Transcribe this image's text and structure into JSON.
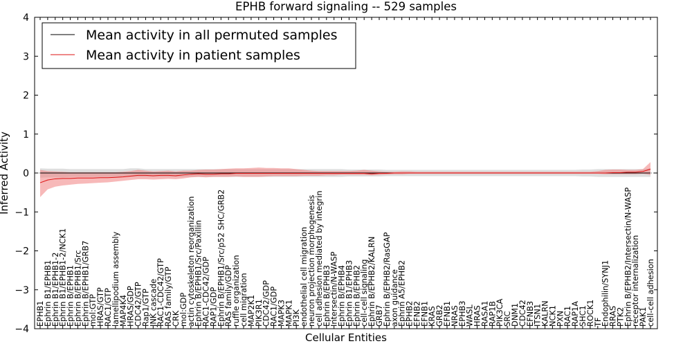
{
  "chart_data": {
    "type": "line",
    "title": "EPHB forward signaling -- 529 samples",
    "xlabel": "Cellular Entities",
    "ylabel": "Inferred Activity",
    "ylim": [
      -4,
      4
    ],
    "yticks": [
      -4,
      -3,
      -2,
      -1,
      0,
      1,
      2,
      3,
      4
    ],
    "legend_position": "top-left",
    "colors": {
      "permuted": "#000000",
      "patient": "#dd1111",
      "permuted_band": "#c8c8c8",
      "patient_band": "#f08080"
    },
    "categories": [
      "EPHB1",
      "Ephrin B1/EPHB1",
      "Ephrin B1/EPHB1-2",
      "Ephrin B1/EPHB1-2/NCK1",
      "Ephrin B/EPHB1",
      "Ephrin B/EPHB1/Src",
      "Ephrin B/EPHB1/GRB7",
      "mol:GTP",
      "HRAS/GTP",
      "RAC1/GTP",
      "lamellipodium assembly",
      "MAP4K4",
      "HRAS/GDP",
      "CDC42/GTP",
      "Rap1/GTP",
      "JNK cascade",
      "RAC1-CDC42/GTP",
      "RAS family/GTP",
      "CRK",
      "mol:GDP",
      "actin cytoskeleton reorganization",
      "Ephrin B/EPHB1/Src/Paxillin",
      "RAC1-CDC42/GDP",
      "RAP1/GDP",
      "Ephrin B/EPHB1/Src/p52 SHC/GRB2",
      "RAS family/GDP",
      "ruffle organization",
      "cell migration",
      "MAP2K1",
      "PIK3R1",
      "CDC42/GDP",
      "RAC1/GDP",
      "MAPK3",
      "MAPK1",
      "PI3K",
      "endothelial cell migration",
      "neuron projection morphogenesis",
      "cell adhesion mediated by integrin",
      "Ephrin B/EPHB3",
      "Intersectin/N-WASP",
      "Ephrin B/EPHB4",
      "Ephrin B1/EPHB3",
      "Ephrin B/EPHB2",
      "cell-cell signaling",
      "Ephrin B/EPHB2/KALRN",
      "GRB7",
      "Ephrin B/EPHB2/RasGAP",
      "axon guidance",
      "Ephrin A5/EPHB2",
      "EPHB2",
      "EFNB2",
      "EFNB1",
      "KRAS",
      "GRB2",
      "EFNB1",
      "NRAS",
      "EPHB3",
      "WASL",
      "HRAS",
      "RASA1",
      "RAP1B",
      "PIK3CA",
      "SRC",
      "DNM1",
      "CDC42",
      "EFNB3",
      "ITSN1",
      "KALRN",
      "NCK1",
      "PXN",
      "RAC1",
      "RAP1A",
      "SHC1",
      "ROCK1",
      "TF",
      "Endophilin/SYNJ1",
      "RRAS",
      "PTK2",
      "Ephrin B/EPHB2/Intersectin/N-WASP",
      "receptor internalization",
      "PAK1",
      "cell-cell adhesion"
    ],
    "series": [
      {
        "name": "Mean activity in all permuted samples",
        "values": [
          0.0,
          0.0,
          0.0,
          0.0,
          0.0,
          0.0,
          0.0,
          0.0,
          0.0,
          0.0,
          0.0,
          0.0,
          0.0,
          0.0,
          0.0,
          0.0,
          0.0,
          0.0,
          0.0,
          0.0,
          0.0,
          0.0,
          0.0,
          0.0,
          0.0,
          0.0,
          0.0,
          0.0,
          0.0,
          0.0,
          0.0,
          0.0,
          0.0,
          0.0,
          0.0,
          0.0,
          0.0,
          0.0,
          0.0,
          0.0,
          0.0,
          0.0,
          0.0,
          0.0,
          0.0,
          0.0,
          0.0,
          0.0,
          0.0,
          0.0,
          0.0,
          0.0,
          0.0,
          0.0,
          0.0,
          0.0,
          0.0,
          0.0,
          0.0,
          0.0,
          0.0,
          0.0,
          0.0,
          0.0,
          0.0,
          0.0,
          0.0,
          0.0,
          0.0,
          0.0,
          0.0,
          0.0,
          0.0,
          0.0,
          0.0,
          0.0,
          0.0,
          0.0,
          0.0,
          0.0,
          0.0,
          0.0
        ],
        "band_low": [
          -0.12,
          -0.11,
          -0.11,
          -0.11,
          -0.1,
          -0.1,
          -0.1,
          -0.1,
          -0.1,
          -0.1,
          -0.1,
          -0.1,
          -0.1,
          -0.1,
          -0.1,
          -0.1,
          -0.1,
          -0.1,
          -0.1,
          -0.1,
          -0.1,
          -0.1,
          -0.1,
          -0.1,
          -0.1,
          -0.1,
          -0.1,
          -0.1,
          -0.1,
          -0.1,
          -0.1,
          -0.1,
          -0.1,
          -0.1,
          -0.1,
          -0.1,
          -0.1,
          -0.1,
          -0.1,
          -0.1,
          -0.1,
          -0.09,
          -0.09,
          -0.09,
          -0.09,
          -0.09,
          -0.08,
          -0.08,
          -0.08,
          -0.08,
          -0.08,
          -0.08,
          -0.08,
          -0.08,
          -0.08,
          -0.08,
          -0.08,
          -0.08,
          -0.08,
          -0.08,
          -0.08,
          -0.08,
          -0.08,
          -0.08,
          -0.08,
          -0.08,
          -0.08,
          -0.08,
          -0.08,
          -0.08,
          -0.08,
          -0.08,
          -0.09,
          -0.09,
          -0.1,
          -0.1,
          -0.1,
          -0.1,
          -0.1,
          -0.1,
          -0.1,
          -0.1
        ],
        "band_high": [
          0.12,
          0.11,
          0.11,
          0.11,
          0.1,
          0.1,
          0.1,
          0.1,
          0.1,
          0.1,
          0.1,
          0.1,
          0.12,
          0.12,
          0.1,
          0.1,
          0.1,
          0.1,
          0.1,
          0.1,
          0.1,
          0.1,
          0.1,
          0.1,
          0.1,
          0.1,
          0.1,
          0.1,
          0.1,
          0.1,
          0.1,
          0.1,
          0.1,
          0.1,
          0.1,
          0.1,
          0.1,
          0.1,
          0.1,
          0.1,
          0.1,
          0.09,
          0.09,
          0.09,
          0.09,
          0.09,
          0.08,
          0.08,
          0.08,
          0.08,
          0.08,
          0.08,
          0.08,
          0.08,
          0.08,
          0.08,
          0.08,
          0.08,
          0.08,
          0.08,
          0.08,
          0.08,
          0.08,
          0.08,
          0.08,
          0.08,
          0.08,
          0.08,
          0.08,
          0.08,
          0.08,
          0.08,
          0.09,
          0.09,
          0.1,
          0.1,
          0.1,
          0.1,
          0.1,
          0.1,
          0.1,
          0.12
        ]
      },
      {
        "name": "Mean activity in patient samples",
        "values": [
          -0.25,
          -0.18,
          -0.15,
          -0.14,
          -0.14,
          -0.13,
          -0.13,
          -0.13,
          -0.12,
          -0.12,
          -0.11,
          -0.1,
          -0.08,
          -0.06,
          -0.06,
          -0.07,
          -0.06,
          -0.06,
          -0.07,
          -0.05,
          -0.03,
          -0.02,
          -0.03,
          -0.03,
          -0.02,
          -0.02,
          -0.01,
          -0.01,
          -0.01,
          -0.01,
          -0.01,
          -0.01,
          -0.01,
          -0.01,
          -0.01,
          -0.01,
          -0.01,
          -0.01,
          -0.01,
          -0.01,
          -0.01,
          -0.01,
          -0.01,
          -0.01,
          -0.02,
          -0.01,
          -0.01,
          0.0,
          0.0,
          0.0,
          0.0,
          0.0,
          0.0,
          0.0,
          0.0,
          0.0,
          0.0,
          0.0,
          0.0,
          0.0,
          0.0,
          0.0,
          0.0,
          0.0,
          0.0,
          0.0,
          0.0,
          0.0,
          0.0,
          0.0,
          0.0,
          0.0,
          0.0,
          0.0,
          0.0,
          0.0,
          0.01,
          0.01,
          0.02,
          0.02,
          0.04,
          0.1
        ],
        "band_low": [
          -0.62,
          -0.42,
          -0.35,
          -0.32,
          -0.3,
          -0.28,
          -0.27,
          -0.26,
          -0.25,
          -0.24,
          -0.22,
          -0.2,
          -0.18,
          -0.16,
          -0.16,
          -0.17,
          -0.16,
          -0.15,
          -0.16,
          -0.14,
          -0.11,
          -0.1,
          -0.11,
          -0.1,
          -0.1,
          -0.1,
          -0.09,
          -0.1,
          -0.1,
          -0.1,
          -0.09,
          -0.08,
          -0.08,
          -0.08,
          -0.08,
          -0.07,
          -0.07,
          -0.07,
          -0.06,
          -0.06,
          -0.05,
          -0.05,
          -0.05,
          -0.05,
          -0.06,
          -0.05,
          -0.04,
          -0.03,
          -0.03,
          -0.02,
          -0.02,
          -0.02,
          -0.02,
          -0.02,
          -0.02,
          -0.02,
          -0.02,
          -0.02,
          -0.02,
          -0.02,
          -0.02,
          -0.02,
          -0.02,
          -0.02,
          -0.02,
          -0.02,
          -0.02,
          -0.02,
          -0.02,
          -0.02,
          -0.02,
          -0.02,
          -0.02,
          -0.02,
          -0.02,
          -0.03,
          -0.03,
          -0.03,
          -0.03,
          -0.03,
          -0.02,
          -0.05
        ],
        "band_high": [
          0.08,
          0.05,
          0.04,
          0.03,
          0.02,
          0.02,
          0.02,
          0.02,
          0.02,
          0.02,
          0.02,
          0.03,
          0.05,
          0.08,
          0.06,
          0.04,
          0.05,
          0.06,
          0.04,
          0.06,
          0.06,
          0.08,
          0.09,
          0.09,
          0.1,
          0.11,
          0.12,
          0.12,
          0.13,
          0.14,
          0.13,
          0.13,
          0.12,
          0.12,
          0.1,
          0.08,
          0.06,
          0.05,
          0.05,
          0.05,
          0.05,
          0.05,
          0.06,
          0.08,
          0.06,
          0.04,
          0.03,
          0.03,
          0.04,
          0.04,
          0.03,
          0.03,
          0.03,
          0.03,
          0.03,
          0.03,
          0.03,
          0.03,
          0.03,
          0.03,
          0.03,
          0.03,
          0.03,
          0.03,
          0.03,
          0.03,
          0.03,
          0.03,
          0.03,
          0.03,
          0.03,
          0.03,
          0.03,
          0.03,
          0.05,
          0.08,
          0.09,
          0.09,
          0.08,
          0.08,
          0.1,
          0.28
        ]
      }
    ]
  }
}
